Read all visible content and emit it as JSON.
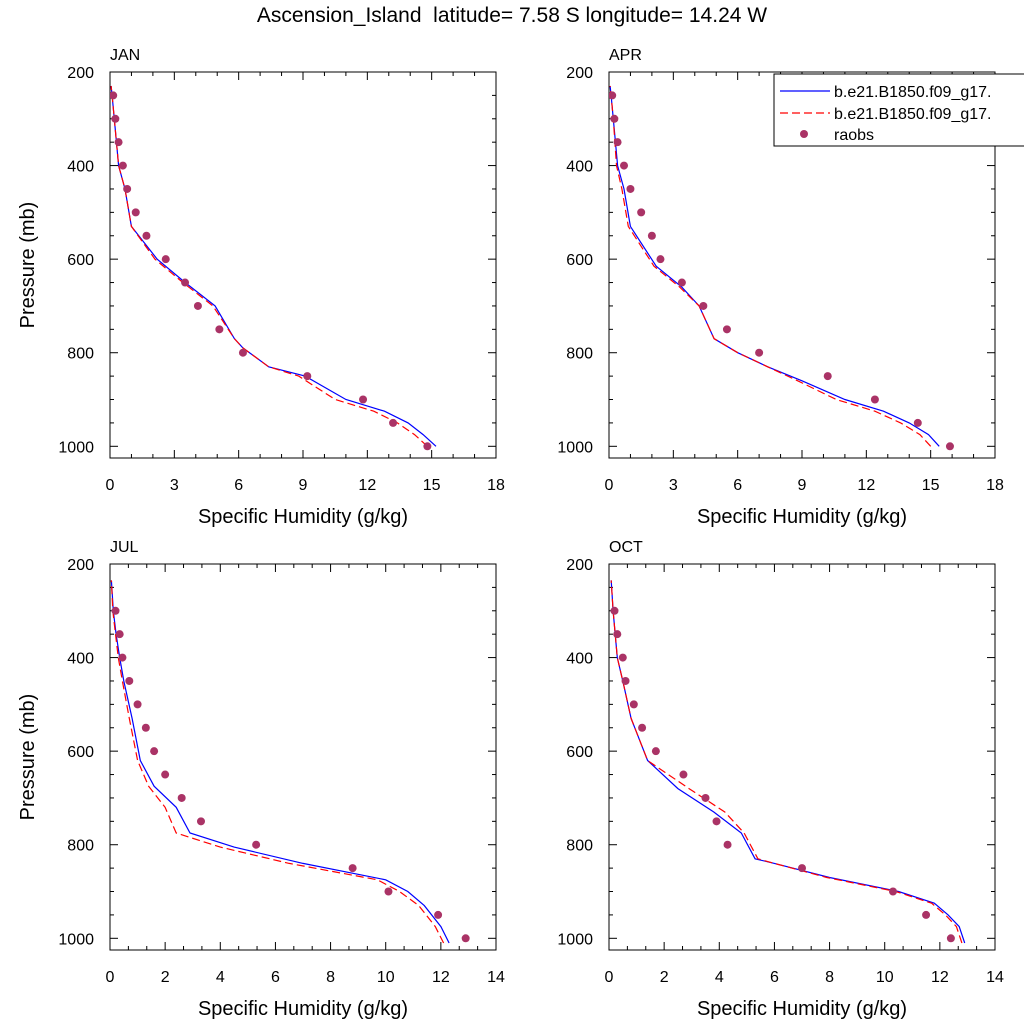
{
  "title": "Ascension_Island  latitude= 7.58 S longitude= 14.24 W",
  "legend": {
    "placement": "top-right of APR panel",
    "entries": [
      "b.e21.B1850.f09_g17.",
      "b.e21.B1850.f09_g17.",
      "raobs"
    ]
  },
  "colors": {
    "model1": "#0000ff",
    "model2": "#ff0000",
    "raobs": "#aa3366"
  },
  "chart_data": [
    {
      "type": "line",
      "panel": "JAN",
      "xlabel": "Specific Humidity (g/kg)",
      "ylabel": "Pressure (mb)",
      "xlim": [
        0,
        18
      ],
      "ylim": [
        1025,
        200
      ],
      "y_inverted": true,
      "xticks": [
        0,
        3,
        6,
        9,
        12,
        15,
        18
      ],
      "yticks": [
        200,
        400,
        600,
        800,
        1000
      ],
      "grid": false,
      "series": [
        {
          "name": "b.e21.B1850.f09_g17.",
          "style": "solid",
          "x": [
            15.2,
            14.6,
            13.9,
            12.8,
            11.0,
            9.1,
            7.4,
            6.2,
            5.8,
            4.9,
            3.5,
            2.2,
            1.0,
            0.7,
            0.4,
            0.2,
            0.1,
            0.05
          ],
          "y": [
            1000,
            975,
            950,
            925,
            900,
            850,
            830,
            790,
            770,
            700,
            650,
            600,
            530,
            450,
            400,
            300,
            250,
            230
          ]
        },
        {
          "name": "b.e21.B1850.f09_g17.",
          "style": "dashed",
          "x": [
            14.8,
            14.2,
            13.4,
            12.3,
            10.5,
            8.8,
            7.4,
            6.2,
            5.8,
            4.8,
            3.4,
            2.1,
            1.0,
            0.7,
            0.4,
            0.2,
            0.1,
            0.05
          ],
          "y": [
            1000,
            975,
            950,
            925,
            900,
            850,
            830,
            790,
            770,
            700,
            650,
            600,
            530,
            450,
            400,
            300,
            250,
            230
          ]
        },
        {
          "name": "raobs",
          "style": "markers",
          "x": [
            14.8,
            13.2,
            11.8,
            9.2,
            6.2,
            5.1,
            4.1,
            3.5,
            2.6,
            1.7,
            1.2,
            0.8,
            0.6,
            0.4,
            0.25,
            0.15
          ],
          "y": [
            1000,
            950,
            900,
            850,
            800,
            750,
            700,
            650,
            600,
            550,
            500,
            450,
            400,
            350,
            300,
            250
          ]
        }
      ]
    },
    {
      "type": "line",
      "panel": "APR",
      "xlabel": "Specific Humidity (g/kg)",
      "ylabel": "",
      "xlim": [
        0,
        18
      ],
      "ylim": [
        1025,
        200
      ],
      "y_inverted": true,
      "xticks": [
        0,
        3,
        6,
        9,
        12,
        15,
        18
      ],
      "yticks": [
        200,
        400,
        600,
        800,
        1000
      ],
      "grid": false,
      "series": [
        {
          "name": "b.e21.B1850.f09_g17.",
          "style": "solid",
          "x": [
            15.4,
            14.9,
            14.0,
            12.8,
            11.0,
            9.0,
            7.4,
            6.0,
            4.9,
            4.2,
            3.4,
            2.2,
            1.0,
            0.7,
            0.4,
            0.2,
            0.1,
            0.05
          ],
          "y": [
            1000,
            975,
            950,
            925,
            900,
            860,
            830,
            800,
            770,
            700,
            660,
            615,
            530,
            450,
            400,
            300,
            250,
            230
          ]
        },
        {
          "name": "b.e21.B1850.f09_g17.",
          "style": "dashed",
          "x": [
            15.0,
            14.5,
            13.6,
            12.4,
            10.6,
            8.8,
            7.4,
            6.0,
            4.9,
            4.2,
            3.3,
            2.1,
            0.9,
            0.6,
            0.35,
            0.2,
            0.1,
            0.05
          ],
          "y": [
            1000,
            975,
            950,
            925,
            900,
            860,
            830,
            800,
            770,
            700,
            660,
            615,
            530,
            450,
            400,
            300,
            250,
            230
          ]
        },
        {
          "name": "raobs",
          "style": "markers",
          "x": [
            15.9,
            14.4,
            12.4,
            10.2,
            7.0,
            5.5,
            4.4,
            3.4,
            2.4,
            2.0,
            1.5,
            1.0,
            0.7,
            0.4,
            0.25,
            0.15
          ],
          "y": [
            1000,
            950,
            900,
            850,
            800,
            750,
            700,
            650,
            600,
            550,
            500,
            450,
            400,
            350,
            300,
            250
          ]
        }
      ]
    },
    {
      "type": "line",
      "panel": "JUL",
      "xlabel": "Specific Humidity (g/kg)",
      "ylabel": "Pressure (mb)",
      "xlim": [
        0,
        14
      ],
      "ylim": [
        1025,
        200
      ],
      "y_inverted": true,
      "xticks": [
        0,
        2,
        4,
        6,
        8,
        10,
        12,
        14
      ],
      "yticks": [
        200,
        400,
        600,
        800,
        1000
      ],
      "grid": false,
      "series": [
        {
          "name": "b.e21.B1850.f09_g17.",
          "style": "solid",
          "x": [
            12.3,
            12.0,
            11.4,
            10.8,
            10.0,
            7.0,
            4.5,
            2.9,
            2.4,
            1.6,
            1.1,
            0.8,
            0.5,
            0.35,
            0.22,
            0.12,
            0.05
          ],
          "y": [
            1010,
            975,
            930,
            900,
            875,
            840,
            805,
            775,
            720,
            675,
            620,
            530,
            450,
            400,
            350,
            300,
            235
          ]
        },
        {
          "name": "b.e21.B1850.f09_g17.",
          "style": "dashed",
          "x": [
            12.1,
            11.8,
            11.2,
            10.5,
            9.7,
            6.5,
            4.0,
            2.4,
            2.0,
            1.4,
            1.0,
            0.7,
            0.45,
            0.3,
            0.2,
            0.1,
            0.05
          ],
          "y": [
            1010,
            975,
            930,
            900,
            875,
            840,
            805,
            775,
            720,
            675,
            620,
            530,
            450,
            400,
            350,
            300,
            235
          ]
        },
        {
          "name": "raobs",
          "style": "markers",
          "x": [
            12.9,
            11.9,
            10.1,
            8.8,
            5.3,
            3.3,
            2.6,
            2.0,
            1.6,
            1.3,
            1.0,
            0.7,
            0.45,
            0.35,
            0.2
          ],
          "y": [
            1000,
            950,
            900,
            850,
            800,
            750,
            700,
            650,
            600,
            550,
            500,
            450,
            400,
            350,
            300
          ]
        }
      ]
    },
    {
      "type": "line",
      "panel": "OCT",
      "xlabel": "Specific Humidity (g/kg)",
      "ylabel": "",
      "xlim": [
        0,
        14
      ],
      "ylim": [
        1025,
        200
      ],
      "y_inverted": true,
      "xticks": [
        0,
        2,
        4,
        6,
        8,
        10,
        12,
        14
      ],
      "yticks": [
        200,
        400,
        600,
        800,
        1000
      ],
      "grid": false,
      "series": [
        {
          "name": "b.e21.B1850.f09_g17.",
          "style": "solid",
          "x": [
            12.9,
            12.7,
            12.3,
            11.8,
            10.5,
            8.0,
            6.0,
            5.3,
            4.8,
            3.8,
            2.5,
            1.4,
            0.8,
            0.5,
            0.3,
            0.15,
            0.08
          ],
          "y": [
            1010,
            975,
            950,
            925,
            900,
            870,
            840,
            830,
            775,
            730,
            680,
            620,
            530,
            450,
            400,
            300,
            235
          ]
        },
        {
          "name": "b.e21.B1850.f09_g17.",
          "style": "dashed",
          "x": [
            12.8,
            12.6,
            12.2,
            11.7,
            10.4,
            7.9,
            6.0,
            5.4,
            4.9,
            4.2,
            2.9,
            1.4,
            0.8,
            0.5,
            0.3,
            0.15,
            0.08
          ],
          "y": [
            1010,
            975,
            950,
            925,
            900,
            870,
            840,
            830,
            775,
            730,
            680,
            620,
            530,
            450,
            400,
            300,
            235
          ]
        },
        {
          "name": "raobs",
          "style": "markers",
          "x": [
            12.4,
            11.5,
            10.3,
            7.0,
            4.3,
            3.9,
            3.5,
            2.7,
            1.7,
            1.2,
            0.9,
            0.6,
            0.5,
            0.3,
            0.2
          ],
          "y": [
            1000,
            950,
            900,
            850,
            800,
            750,
            700,
            650,
            600,
            550,
            500,
            450,
            400,
            350,
            300
          ]
        }
      ]
    }
  ]
}
